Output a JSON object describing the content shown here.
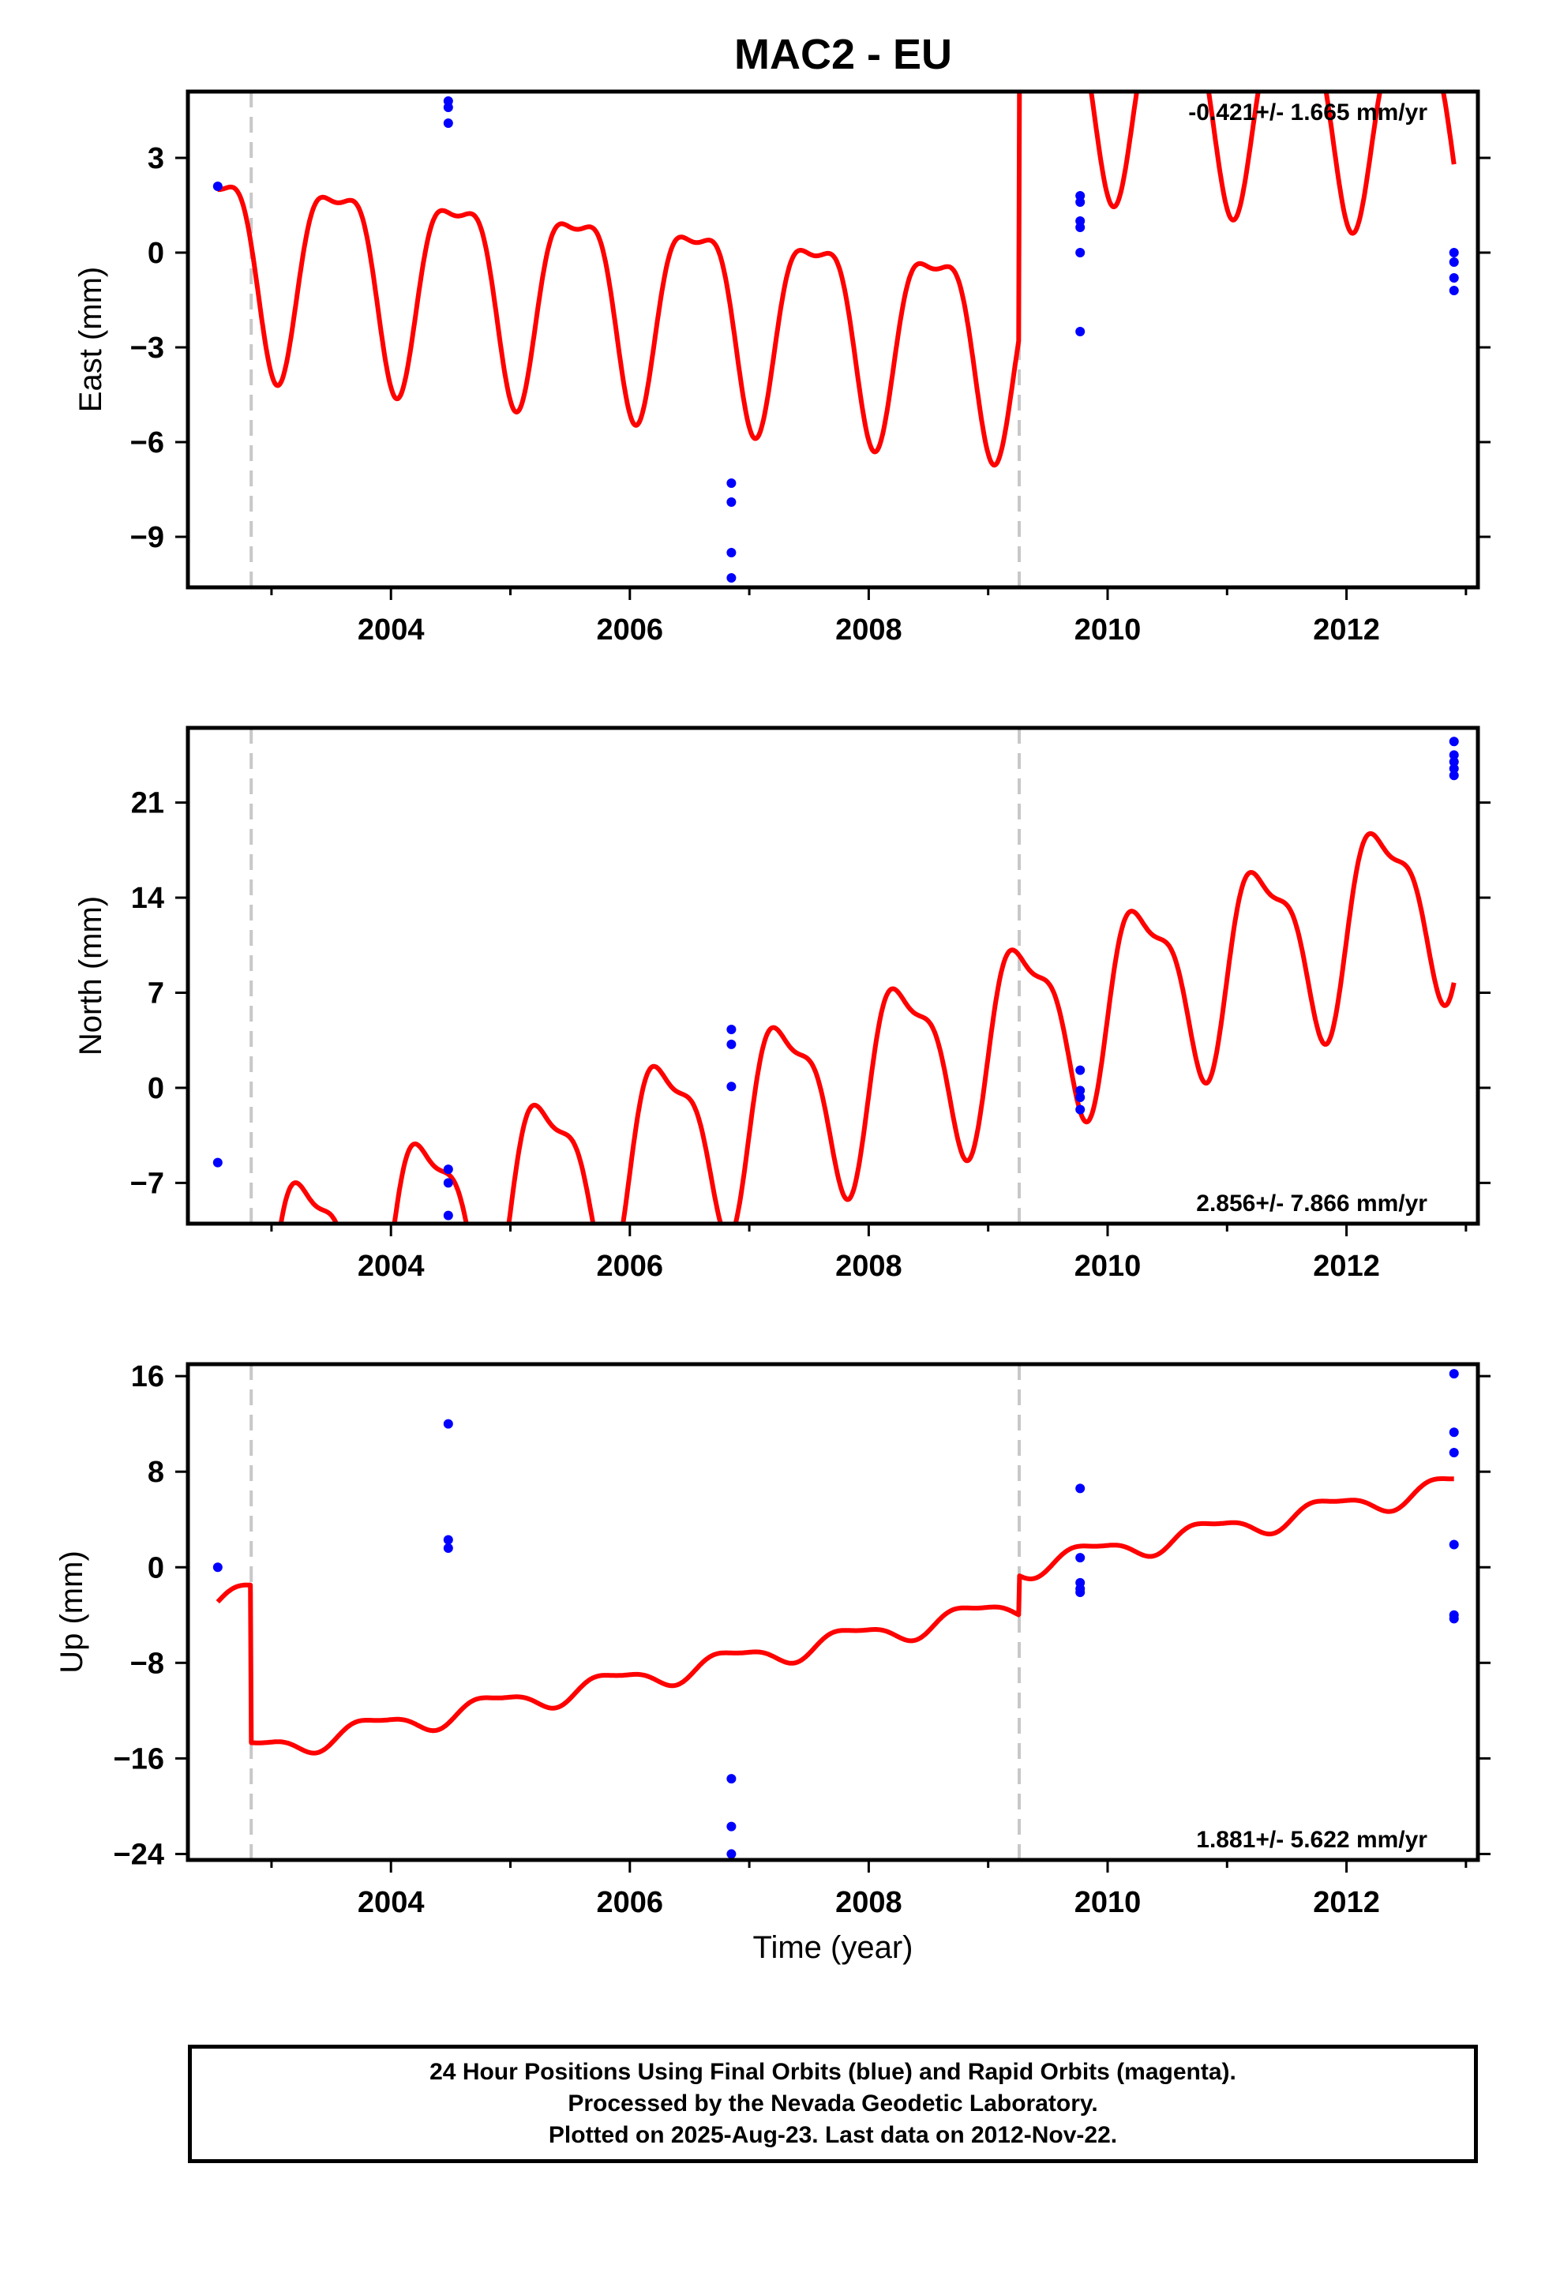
{
  "title": "MAC2 - EU",
  "colors": {
    "model": "#ff0000",
    "final_orbits": "#0000ff",
    "offset_line": "#c8c8c8"
  },
  "footer": {
    "line1": "24 Hour Positions Using Final Orbits (blue) and Rapid Orbits (magenta).",
    "line2": "Processed by the Nevada Geodetic Laboratory.",
    "line3": "Plotted on 2025-Aug-23. Last data on 2012-Nov-22."
  },
  "chart_data": [
    {
      "type": "scatter",
      "ylabel": "East (mm)",
      "xlabel": "",
      "rate_text": "-0.421+/- 1.665 mm/yr",
      "rate_position": "top-right",
      "xlim": [
        2002.3,
        2013.1
      ],
      "ylim": [
        -10.6,
        5.1
      ],
      "yticks": [
        3,
        0,
        -3,
        -6,
        -9
      ],
      "ytick_labels": [
        "3",
        "0",
        "−3",
        "−6",
        "−9"
      ],
      "xticks": [
        2004,
        2006,
        2008,
        2010,
        2012
      ],
      "xtick_labels": [
        "2004",
        "2006",
        "2008",
        "2010",
        "2012"
      ],
      "offset_epochs": [
        2002.83,
        2009.26
      ],
      "model": {
        "start": 2002.55,
        "end": 2012.9,
        "y0": 2.0,
        "trend": -0.42,
        "annual_amp": 3.0,
        "annual_phase": 0.0,
        "semi_amp": 1.0,
        "semi_phase": 0.75,
        "steps": [
          {
            "t": 2002.83,
            "dy": 0.0
          },
          {
            "t": 2009.26,
            "dy": 8.6
          }
        ]
      },
      "points": [
        [
          2002.55,
          2.1
        ],
        [
          2004.48,
          4.8
        ],
        [
          2004.48,
          4.6
        ],
        [
          2004.48,
          4.1
        ],
        [
          2006.85,
          -7.3
        ],
        [
          2006.85,
          -7.9
        ],
        [
          2006.85,
          -9.5
        ],
        [
          2006.85,
          -10.3
        ],
        [
          2009.77,
          1.8
        ],
        [
          2009.77,
          1.6
        ],
        [
          2009.77,
          1.0
        ],
        [
          2009.77,
          0.8
        ],
        [
          2009.77,
          0.0
        ],
        [
          2009.77,
          -2.5
        ],
        [
          2012.9,
          0.0
        ],
        [
          2012.9,
          -0.3
        ],
        [
          2012.9,
          -0.8
        ],
        [
          2012.9,
          -1.2
        ]
      ]
    },
    {
      "type": "scatter",
      "ylabel": "North (mm)",
      "xlabel": "",
      "rate_text": "2.856+/- 7.866 mm/yr",
      "rate_position": "bottom-right",
      "xlim": [
        2002.3,
        2013.1
      ],
      "ylim": [
        -10,
        26.5
      ],
      "yticks": [
        21,
        14,
        7,
        0,
        -7
      ],
      "ytick_labels": [
        "21",
        "14",
        "7",
        "0",
        "−7"
      ],
      "xticks": [
        2004,
        2006,
        2008,
        2010,
        2012
      ],
      "xtick_labels": [
        "2004",
        "2006",
        "2008",
        "2010",
        "2012"
      ],
      "offset_epochs": [
        2002.83,
        2009.26
      ],
      "model": {
        "start": 2002.55,
        "end": 2012.9,
        "y0": -13.0,
        "trend": 2.856,
        "annual_amp": 6.5,
        "annual_phase": 0.75,
        "semi_amp": 2.2,
        "semi_phase": 0.55,
        "steps": [
          {
            "t": 2002.83,
            "dy": 0.0
          },
          {
            "t": 2009.26,
            "dy": 0.0
          }
        ]
      },
      "points": [
        [
          2002.55,
          -5.5
        ],
        [
          2004.48,
          -6.0
        ],
        [
          2004.48,
          -7.0
        ],
        [
          2004.48,
          -9.4
        ],
        [
          2006.85,
          4.3
        ],
        [
          2006.85,
          3.2
        ],
        [
          2006.85,
          0.1
        ],
        [
          2009.77,
          1.3
        ],
        [
          2009.77,
          -0.2
        ],
        [
          2009.77,
          -0.7
        ],
        [
          2009.77,
          -1.6
        ],
        [
          2012.9,
          25.5
        ],
        [
          2012.9,
          24.5
        ],
        [
          2012.9,
          24.0
        ],
        [
          2012.9,
          23.5
        ],
        [
          2012.9,
          23.0
        ]
      ]
    },
    {
      "type": "scatter",
      "ylabel": "Up (mm)",
      "xlabel": "Time (year)",
      "rate_text": "1.881+/- 5.622 mm/yr",
      "rate_position": "bottom-right",
      "xlim": [
        2002.3,
        2013.1
      ],
      "ylim": [
        -24.5,
        17
      ],
      "yticks": [
        16,
        8,
        0,
        -8,
        -16,
        -24
      ],
      "ytick_labels": [
        "16",
        "8",
        "0",
        "−8",
        "−16",
        "−24"
      ],
      "xticks": [
        2004,
        2006,
        2008,
        2010,
        2012
      ],
      "xtick_labels": [
        "2004",
        "2006",
        "2008",
        "2010",
        "2012"
      ],
      "offset_epochs": [
        2002.83,
        2009.26
      ],
      "model": {
        "start": 2002.55,
        "end": 2012.9,
        "y0": -2.9,
        "trend": 1.88,
        "annual_amp": 0.9,
        "annual_phase": 0.3,
        "semi_amp": 0.3,
        "semi_phase": 0.1,
        "steps": [
          {
            "t": 2002.83,
            "dy": -13.2
          },
          {
            "t": 2009.26,
            "dy": 3.3
          }
        ]
      },
      "points": [
        [
          2002.55,
          0.0
        ],
        [
          2004.48,
          12.0
        ],
        [
          2004.48,
          2.3
        ],
        [
          2004.48,
          1.6
        ],
        [
          2006.85,
          -17.7
        ],
        [
          2006.85,
          -21.7
        ],
        [
          2006.85,
          -24.0
        ],
        [
          2009.77,
          6.6
        ],
        [
          2009.77,
          0.8
        ],
        [
          2009.77,
          -1.3
        ],
        [
          2009.77,
          -1.8
        ],
        [
          2009.77,
          -2.1
        ],
        [
          2012.9,
          16.2
        ],
        [
          2012.9,
          11.3
        ],
        [
          2012.9,
          9.6
        ],
        [
          2012.9,
          1.9
        ],
        [
          2012.9,
          -4.0
        ],
        [
          2012.9,
          -4.3
        ]
      ]
    }
  ]
}
